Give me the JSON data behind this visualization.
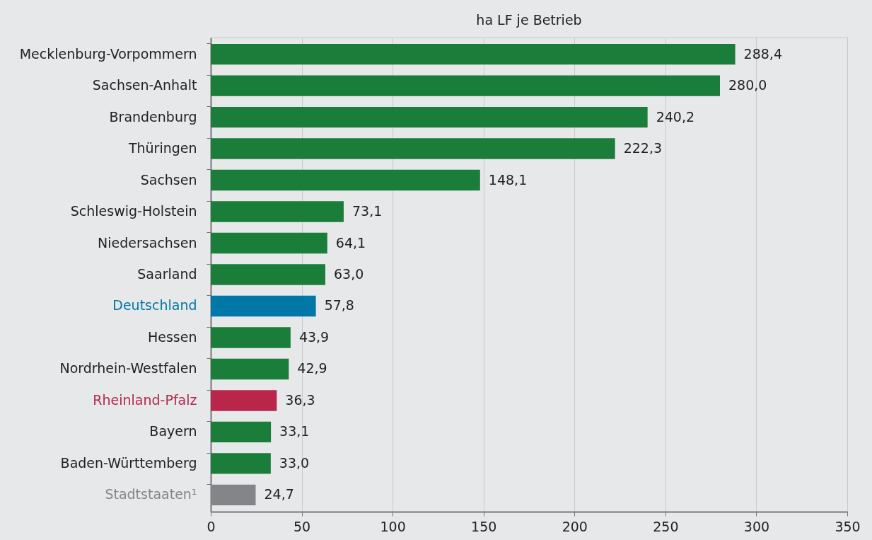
{
  "chart_data": {
    "type": "bar",
    "orientation": "horizontal",
    "xlabel": "ha LF je Betrieb",
    "categories": [
      "Mecklenburg-Vorpommern",
      "Sachsen-Anhalt",
      "Brandenburg",
      "Thüringen",
      "Sachsen",
      "Schleswig-Holstein",
      "Niedersachsen",
      "Saarland",
      "Deutschland",
      "Hessen",
      "Nordrhein-Westfalen",
      "Rheinland-Pfalz",
      "Bayern",
      "Baden-Württemberg",
      "Stadtstaaten¹"
    ],
    "values": [
      288.4,
      280.0,
      240.2,
      222.3,
      148.1,
      73.1,
      64.1,
      63.0,
      57.8,
      43.9,
      42.9,
      36.3,
      33.1,
      33.0,
      24.7
    ],
    "value_labels": [
      "288,4",
      "280,0",
      "240,2",
      "222,3",
      "148,1",
      "73,1",
      "64,1",
      "63,0",
      "57,8",
      "43,9",
      "42,9",
      "36,3",
      "33,1",
      "33,0",
      "24,7"
    ],
    "colors": [
      "#1b7d3a",
      "#1b7d3a",
      "#1b7d3a",
      "#1b7d3a",
      "#1b7d3a",
      "#1b7d3a",
      "#1b7d3a",
      "#1b7d3a",
      "#0077a6",
      "#1b7d3a",
      "#1b7d3a",
      "#b8274a",
      "#1b7d3a",
      "#1b7d3a",
      "#848589"
    ],
    "xlim": [
      0,
      350
    ],
    "xticks": [
      0,
      50,
      100,
      150,
      200,
      250,
      300,
      350
    ],
    "grid": "x"
  }
}
